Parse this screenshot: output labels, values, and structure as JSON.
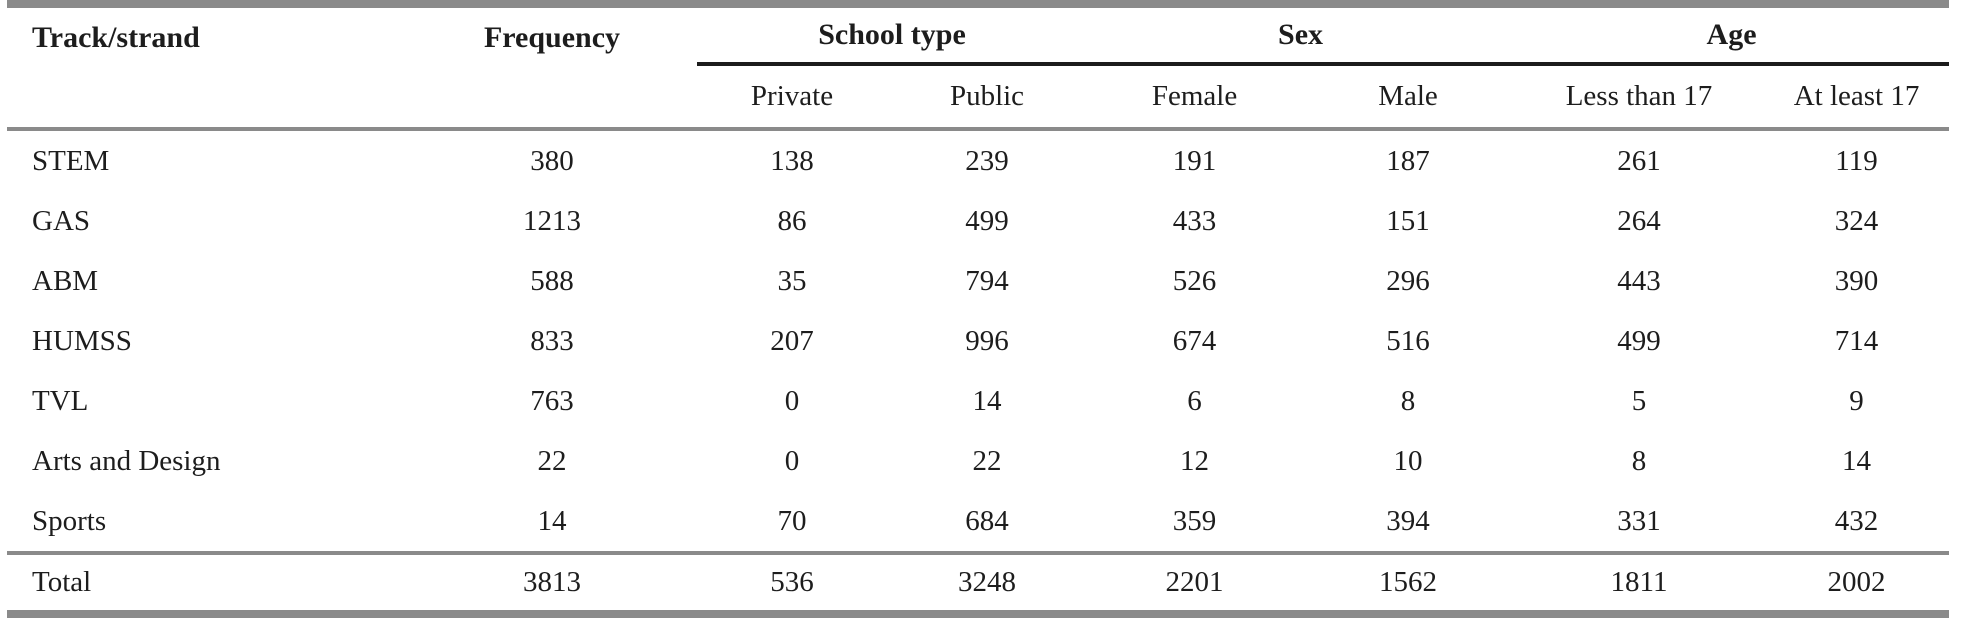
{
  "chart_data": {
    "type": "table",
    "header": {
      "track_strand": "Track/strand",
      "frequency": "Frequency",
      "groups": [
        {
          "label": "School type",
          "subcolumns": [
            "Private",
            "Public"
          ]
        },
        {
          "label": "Sex",
          "subcolumns": [
            "Female",
            "Male"
          ]
        },
        {
          "label": "Age",
          "subcolumns": [
            "Less than 17",
            "At least 17"
          ]
        }
      ]
    },
    "rows": [
      {
        "label": "STEM",
        "values": [
          380,
          138,
          239,
          191,
          187,
          261,
          119
        ]
      },
      {
        "label": "GAS",
        "values": [
          1213,
          86,
          499,
          433,
          151,
          264,
          324
        ]
      },
      {
        "label": "ABM",
        "values": [
          588,
          35,
          794,
          526,
          296,
          443,
          390
        ]
      },
      {
        "label": "HUMSS",
        "values": [
          833,
          207,
          996,
          674,
          516,
          499,
          714
        ]
      },
      {
        "label": "TVL",
        "values": [
          763,
          0,
          14,
          6,
          8,
          5,
          9
        ]
      },
      {
        "label": "Arts and Design",
        "values": [
          22,
          0,
          22,
          12,
          10,
          8,
          14
        ]
      },
      {
        "label": "Sports",
        "values": [
          14,
          70,
          684,
          359,
          394,
          331,
          432
        ]
      }
    ],
    "total_row": {
      "label": "Total",
      "values": [
        3813,
        536,
        3248,
        2201,
        1562,
        1811,
        2002
      ]
    }
  },
  "colors": {
    "background": "#ffffff",
    "text": "#1d1d1d",
    "rule_gray": "#8a8a8a",
    "rule_black": "#1c1c1c"
  }
}
